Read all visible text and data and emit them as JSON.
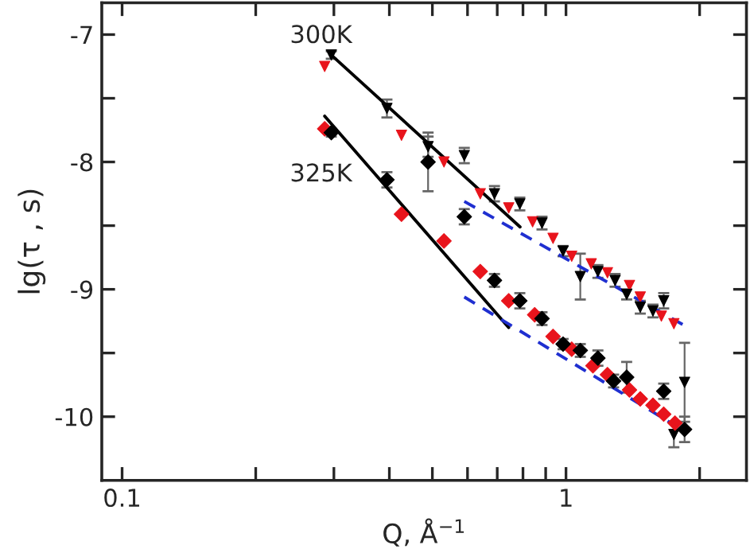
{
  "chart_data": {
    "type": "scatter",
    "xlabel": "Q, Å$^{−1}$",
    "ylabel": "lg(τ , s)",
    "log": "x",
    "grid": false,
    "legend": false,
    "xlim": [
      0.09,
      2.55
    ],
    "ylim": [
      -10.5,
      -6.75
    ],
    "xticks": [
      0.1,
      {
        "value": 0.2,
        "label": null
      },
      {
        "value": 0.3,
        "label": null
      },
      {
        "value": 0.4,
        "label": null
      },
      {
        "value": 0.5,
        "label": null
      },
      {
        "value": 0.6,
        "label": null
      },
      {
        "value": 0.7,
        "label": null
      },
      {
        "value": 0.8,
        "label": null
      },
      {
        "value": 0.9,
        "label": null
      },
      1,
      {
        "value": 2,
        "label": null
      }
    ],
    "yticks": [
      {
        "value": -7,
        "label": "-7"
      },
      {
        "value": -7.5,
        "label": null
      },
      {
        "value": -8,
        "label": "-8"
      },
      {
        "value": -8.5,
        "label": null
      },
      {
        "value": -9,
        "label": "-9"
      },
      {
        "value": -9.5,
        "label": null
      },
      {
        "value": -10,
        "label": "-10"
      }
    ],
    "series": [
      {
        "marker": "triangle",
        "color": "#e8141c",
        "x": [
          0.286,
          0.426,
          0.531,
          0.641,
          0.743,
          0.841,
          0.935,
          1.03,
          1.14,
          1.24,
          1.39,
          1.47,
          1.64,
          1.75
        ],
        "values": [
          -7.25,
          -7.79,
          -8.0,
          -8.25,
          -8.36,
          -8.47,
          -8.6,
          -8.74,
          -8.8,
          -8.87,
          -8.97,
          -9.06,
          -9.21,
          -9.27
        ]
      },
      {
        "marker": "triangle",
        "color": "#000000",
        "x": [
          0.296,
          0.395,
          0.489,
          0.59,
          0.69,
          0.787,
          0.883,
          0.985,
          1.077,
          1.18,
          1.29,
          1.37,
          1.47,
          1.57,
          1.66,
          1.75,
          1.85
        ],
        "values": [
          -7.16,
          -7.58,
          -7.88,
          -7.95,
          -8.25,
          -8.33,
          -8.48,
          -8.7,
          -8.9,
          -8.86,
          -8.93,
          -9.04,
          -9.14,
          -9.17,
          -9.09,
          -10.14,
          -9.73
        ],
        "errors": [
          0.03,
          0.07,
          0.08,
          0.06,
          0.06,
          0.05,
          0.05,
          0.04,
          0.18,
          0.05,
          0.05,
          0.04,
          0.05,
          0.05,
          0.06,
          0.1,
          0.31
        ]
      },
      {
        "marker": "diamond",
        "color": "#e8141c",
        "x": [
          0.286,
          0.426,
          0.531,
          0.641,
          0.743,
          0.85,
          0.935,
          1.03,
          1.15,
          1.24,
          1.39,
          1.47,
          1.57,
          1.66,
          1.76
        ],
        "values": [
          -7.74,
          -8.41,
          -8.62,
          -8.86,
          -9.09,
          -9.2,
          -9.37,
          -9.47,
          -9.6,
          -9.67,
          -9.79,
          -9.86,
          -9.91,
          -9.98,
          -10.05
        ]
      },
      {
        "marker": "diamond",
        "color": "#000000",
        "x": [
          0.296,
          0.395,
          0.489,
          0.59,
          0.69,
          0.787,
          0.883,
          0.985,
          1.077,
          1.18,
          1.28,
          1.37,
          1.66,
          1.85
        ],
        "values": [
          -7.77,
          -8.14,
          -8.0,
          -8.43,
          -8.93,
          -9.09,
          -9.23,
          -9.43,
          -9.48,
          -9.54,
          -9.72,
          -9.69,
          -9.8,
          -10.1
        ],
        "errors": [
          0.03,
          0.06,
          0.23,
          0.06,
          0.05,
          0.06,
          0.05,
          0.04,
          0.05,
          0.06,
          0.05,
          0.12,
          0.06,
          0.1
        ]
      },
      {
        "type": "line",
        "line_style": "solid",
        "color": "#000000",
        "x": [
          0.296,
          0.788
        ],
        "values": [
          -7.16,
          -8.51
        ]
      },
      {
        "type": "line",
        "line_style": "solid",
        "color": "#000000",
        "x": [
          0.286,
          0.743
        ],
        "values": [
          -7.64,
          -9.3
        ]
      },
      {
        "type": "line",
        "line_style": "dashed",
        "color": "#1f2fd0",
        "x": [
          0.59,
          1.84
        ],
        "values": [
          -8.31,
          -9.28
        ]
      },
      {
        "type": "line",
        "line_style": "dashed",
        "color": "#1f2fd0",
        "x": [
          0.59,
          1.84
        ],
        "values": [
          -9.06,
          -10.11
        ]
      }
    ],
    "annotations": [
      "300K",
      "325K"
    ]
  }
}
